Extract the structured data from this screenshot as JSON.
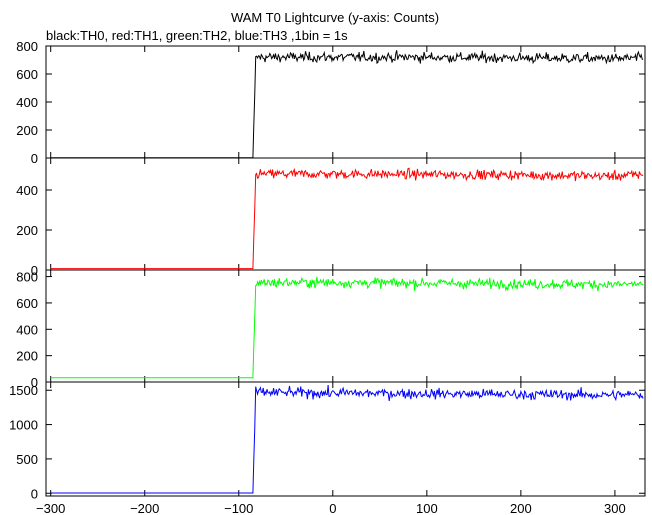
{
  "title": "WAM T0 Lightcurve (y-axis: Counts)",
  "subtitle": "black:TH0, red:TH1, green:TH2, blue:TH3 ,1bin = 1s",
  "chart_data": [
    {
      "type": "line",
      "series": [
        {
          "name": "TH0",
          "color": "#000000",
          "x": [
            -300,
            -85,
            -82,
            -80,
            0,
            100,
            200,
            300,
            330
          ],
          "y": [
            2,
            2,
            700,
            720,
            720,
            720,
            715,
            710,
            715
          ]
        }
      ],
      "xlim": [
        -305,
        332
      ],
      "ylim": [
        0,
        800
      ],
      "yticks": [
        0,
        200,
        400,
        600,
        800
      ],
      "grid": false
    },
    {
      "type": "line",
      "series": [
        {
          "name": "TH1",
          "color": "#ff0000",
          "x": [
            -300,
            -85,
            -82,
            -80,
            0,
            100,
            200,
            300,
            330
          ],
          "y": [
            7,
            7,
            470,
            480,
            480,
            478,
            475,
            470,
            478
          ]
        }
      ],
      "xlim": [
        -305,
        332
      ],
      "ylim": [
        0,
        560
      ],
      "yticks": [
        0,
        200,
        400
      ],
      "grid": false
    },
    {
      "type": "line",
      "series": [
        {
          "name": "TH2",
          "color": "#00ff00",
          "x": [
            -300,
            -85,
            -82,
            -80,
            0,
            100,
            200,
            300,
            330
          ],
          "y": [
            33,
            33,
            740,
            755,
            755,
            750,
            745,
            740,
            745
          ]
        }
      ],
      "xlim": [
        -305,
        332
      ],
      "ylim": [
        0,
        850
      ],
      "yticks": [
        0,
        200,
        400,
        600,
        800
      ],
      "grid": false
    },
    {
      "type": "line",
      "series": [
        {
          "name": "TH3",
          "color": "#0000ff",
          "x": [
            -300,
            -85,
            -82,
            -80,
            0,
            100,
            200,
            300,
            330
          ],
          "y": [
            3,
            3,
            1450,
            1470,
            1460,
            1450,
            1440,
            1430,
            1440
          ]
        }
      ],
      "xlim": [
        -305,
        332
      ],
      "ylim": [
        -40,
        1620
      ],
      "yticks": [
        0,
        500,
        1000,
        1500
      ],
      "xticks": [
        -300,
        -200,
        -100,
        0,
        100,
        200,
        300
      ],
      "grid": false
    }
  ]
}
